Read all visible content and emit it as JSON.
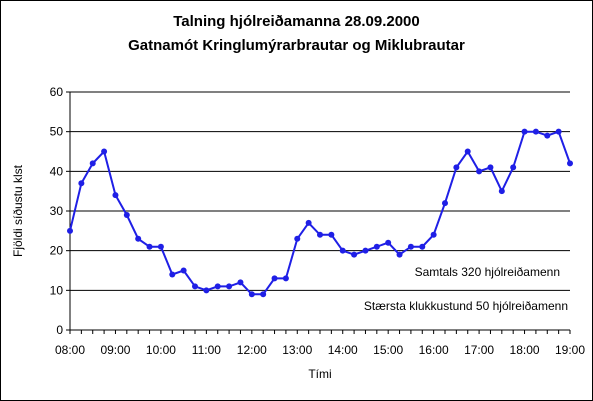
{
  "chart_data": {
    "type": "line",
    "title": "Talning hjólreiðamanna 28.09.2000",
    "subtitle": "Gatnamót Kringlumýrarbrautar og Miklubrautar",
    "xlabel": "Tími",
    "ylabel": "Fjöldi síðustu klst",
    "ylim": [
      0,
      60
    ],
    "yticks": [
      "0",
      "10",
      "20",
      "30",
      "40",
      "50",
      "60"
    ],
    "xticks": [
      "08:00",
      "09:00",
      "10:00",
      "11:00",
      "12:00",
      "13:00",
      "14:00",
      "15:00",
      "16:00",
      "17:00",
      "18:00",
      "19:00"
    ],
    "xlim_hours": [
      8,
      19
    ],
    "grid": true,
    "line_color": "#1f1fe6",
    "series": [
      {
        "x": [
          "08:00",
          "08:15",
          "08:30",
          "08:45",
          "09:00",
          "09:15",
          "09:30",
          "09:45",
          "10:00",
          "10:15",
          "10:30",
          "10:45",
          "11:00",
          "11:15",
          "11:30",
          "11:45",
          "12:00",
          "12:15",
          "12:30",
          "12:45",
          "13:00",
          "13:15",
          "13:30",
          "13:45",
          "14:00",
          "14:15",
          "14:30",
          "14:45",
          "15:00",
          "15:15",
          "15:30",
          "15:45",
          "16:00",
          "16:15",
          "16:30",
          "16:45",
          "17:00",
          "17:15",
          "17:30",
          "17:45",
          "18:00",
          "18:15",
          "18:30",
          "18:45",
          "19:00"
        ],
        "values": [
          25,
          37,
          42,
          45,
          34,
          29,
          23,
          21,
          21,
          14,
          15,
          11,
          10,
          11,
          11,
          12,
          9,
          9,
          13,
          13,
          23,
          27,
          24,
          24,
          20,
          19,
          20,
          21,
          22,
          19,
          21,
          21,
          24,
          32,
          41,
          45,
          40,
          41,
          35,
          41,
          50,
          50,
          49,
          50,
          42
        ]
      }
    ],
    "annotations": [
      "Samtals 320 hjólreiðamenn",
      "Stærsta klukkustund 50 hjólreiðamenn"
    ]
  }
}
